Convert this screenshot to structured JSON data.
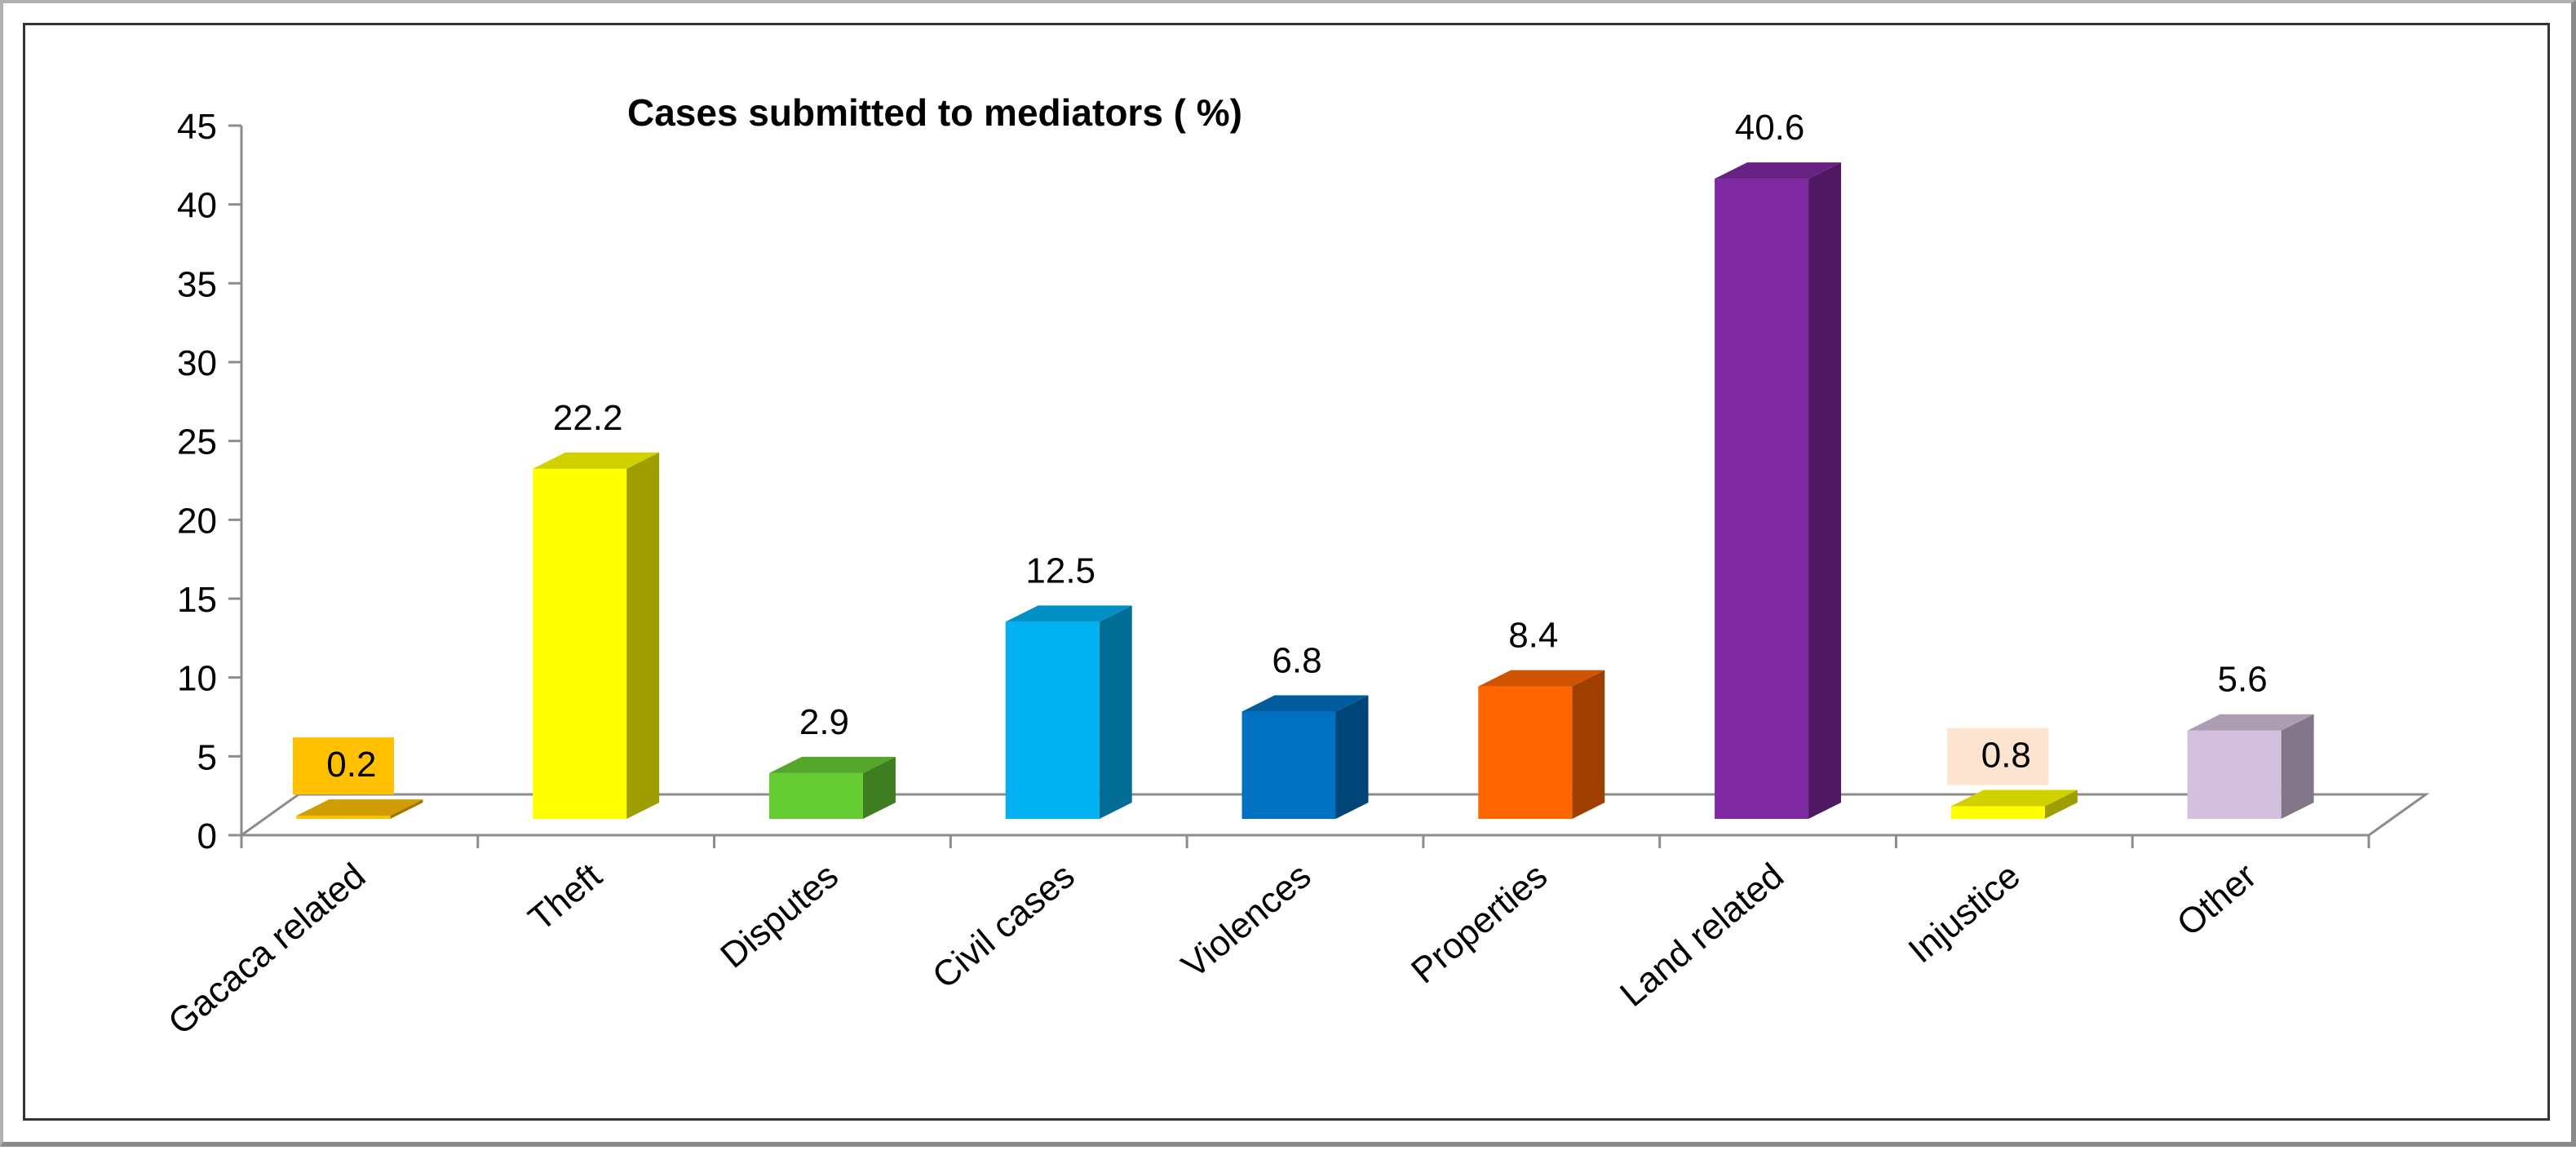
{
  "chart_data": {
    "type": "bar",
    "title": "Cases submitted to  mediators ( %)",
    "xlabel": "",
    "ylabel": "",
    "ylim": [
      0,
      45
    ],
    "yticks": [
      0,
      5,
      10,
      15,
      20,
      25,
      30,
      35,
      40,
      45
    ],
    "categories": [
      "Gacaca related",
      "Theft",
      "Disputes",
      "Civil cases",
      "Violences",
      "Properties",
      "Land related",
      "Injustice",
      "Other"
    ],
    "values": [
      0.2,
      22.2,
      2.9,
      12.5,
      6.8,
      8.4,
      40.6,
      0.8,
      5.6
    ],
    "value_labels": [
      "0.2",
      "22.2",
      "2.9",
      "12.5",
      "6.8",
      "8.4",
      "40.6",
      "0.8",
      "5.6"
    ],
    "colors": [
      "#FFC000",
      "#FFFF00",
      "#66CC33",
      "#00B0F0",
      "#0070C0",
      "#FF6600",
      "#7F2AA0",
      "#FFFF00",
      "#D2C0DC"
    ],
    "label_backgrounds": [
      "#FFC000",
      "",
      "",
      "",
      "",
      "",
      "",
      "#FCE4D0",
      ""
    ],
    "grid": false,
    "legend": "none",
    "style": "3d-column"
  }
}
